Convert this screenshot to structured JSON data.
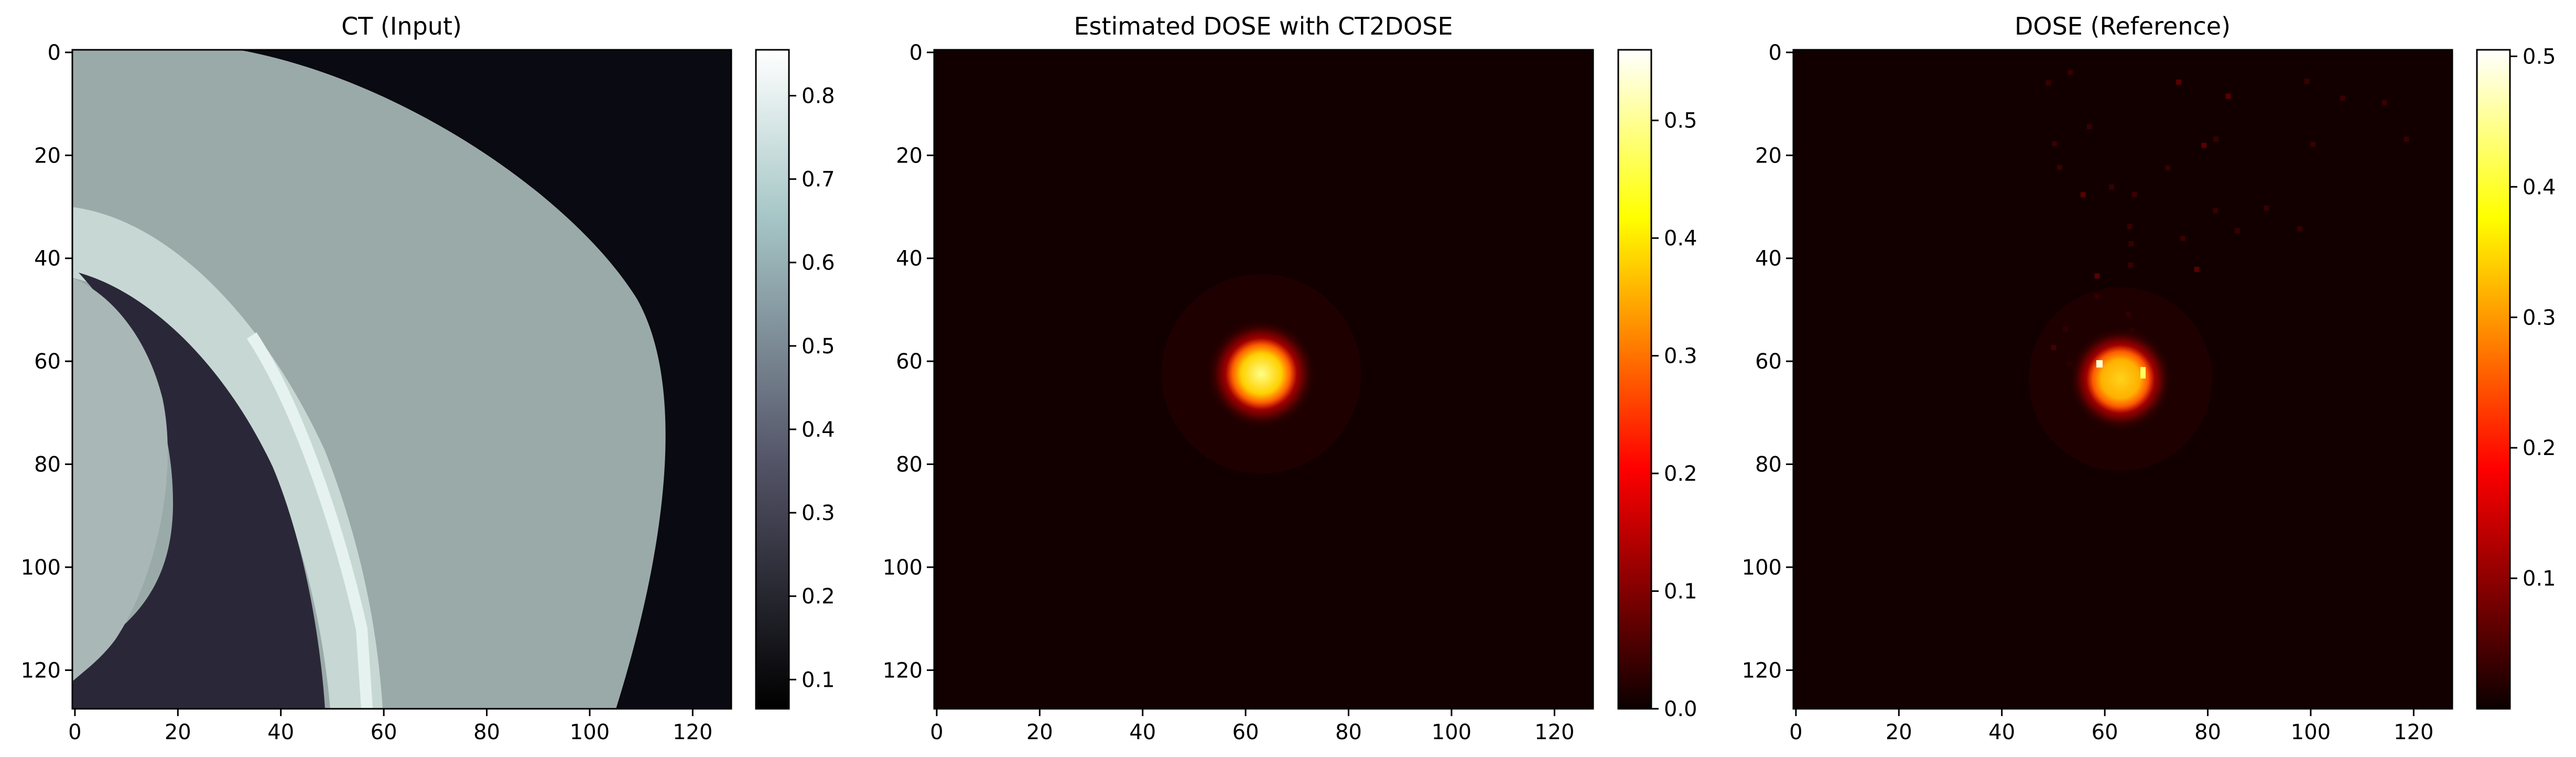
{
  "chart_data": [
    {
      "type": "heatmap",
      "title": "CT (Input)",
      "xlabel": "",
      "ylabel": "",
      "xlim": [
        0,
        128
      ],
      "ylim": [
        128,
        0
      ],
      "x_ticks": [
        "0",
        "20",
        "40",
        "60",
        "80",
        "100",
        "120"
      ],
      "y_ticks": [
        "0",
        "20",
        "40",
        "60",
        "80",
        "100",
        "120"
      ],
      "colormap": "bone",
      "colorbar": {
        "range": [
          0.065,
          0.855
        ],
        "ticks": [
          "0.1",
          "0.2",
          "0.3",
          "0.4",
          "0.5",
          "0.6",
          "0.7",
          "0.8"
        ]
      },
      "content": "Axial CT slice: large soft-tissue region (~0.55) bounded by a curved skin edge, bright curved bone band (~0.75) and dark lung region (~0.15) at lower left; background ~0.07"
    },
    {
      "type": "heatmap",
      "title": "Estimated DOSE with CT2DOSE",
      "xlabel": "",
      "ylabel": "",
      "xlim": [
        0,
        128
      ],
      "ylim": [
        128,
        0
      ],
      "x_ticks": [
        "0",
        "20",
        "40",
        "60",
        "80",
        "100",
        "120"
      ],
      "y_ticks": [
        "0",
        "20",
        "40",
        "60",
        "80",
        "100",
        "120"
      ],
      "colormap": "hot",
      "colorbar": {
        "range": [
          0,
          0.56
        ],
        "ticks": [
          "0.0",
          "0.1",
          "0.2",
          "0.3",
          "0.4",
          "0.5"
        ]
      },
      "peak": {
        "x": 63.5,
        "y": 63,
        "value": 0.55
      },
      "content": "Single circular dose spot centred near (63, 63), peak ~0.55, radius ~4 px with faint halo"
    },
    {
      "type": "heatmap",
      "title": "DOSE (Reference)",
      "xlabel": "",
      "ylabel": "",
      "xlim": [
        0,
        128
      ],
      "ylim": [
        128,
        0
      ],
      "x_ticks": [
        "0",
        "20",
        "40",
        "60",
        "80",
        "100",
        "120"
      ],
      "y_ticks": [
        "0",
        "20",
        "40",
        "60",
        "80",
        "100",
        "120"
      ],
      "colormap": "hot",
      "colorbar": {
        "range": [
          0,
          0.505
        ],
        "ticks": [
          "0.1",
          "0.2",
          "0.3",
          "0.4",
          "0.5"
        ]
      },
      "peak": {
        "x": 63.5,
        "y": 64,
        "value": 0.5
      },
      "content": "Single circular dose spot centred near (63, 64), peak ~0.5, plus sparse faint speckles in the upper-right region"
    }
  ],
  "colors": {
    "background": "#ffffff",
    "axes": "#000000",
    "ct_background": "#0a0a12",
    "ct_soft_tissue": "#9aaaa8",
    "ct_bone": "#cfe0dc",
    "ct_lung": "#2a2838",
    "dose_background": "#120000"
  }
}
